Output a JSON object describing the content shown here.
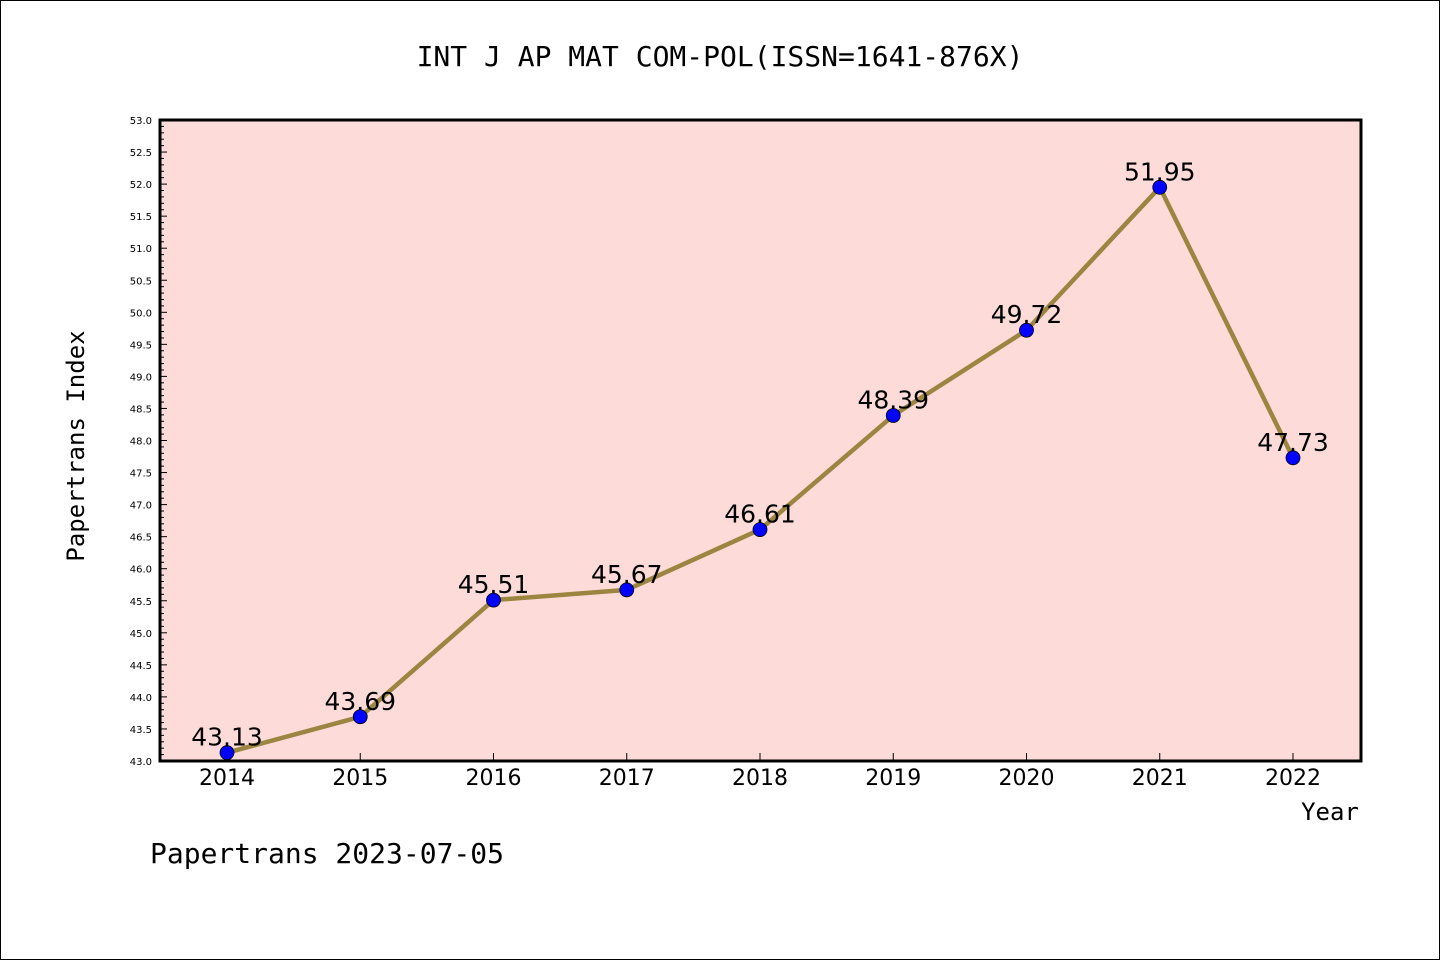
{
  "chart_data": {
    "type": "line",
    "title": "INT J AP MAT COM-POL(ISSN=1641-876X)",
    "xlabel": "Year",
    "ylabel": "Papertrans Index",
    "categories": [
      "2014",
      "2015",
      "2016",
      "2017",
      "2018",
      "2019",
      "2020",
      "2021",
      "2022"
    ],
    "values": [
      43.13,
      43.69,
      45.51,
      45.67,
      46.61,
      48.39,
      49.72,
      51.95,
      47.73
    ],
    "data_labels": [
      "43.13",
      "43.69",
      "45.51",
      "45.67",
      "46.61",
      "48.39",
      "49.72",
      "51.95",
      "47.73"
    ],
    "ylim": [
      43.0,
      53.0
    ],
    "yticks": [
      "43.0",
      "43.5",
      "44.0",
      "44.5",
      "45.0",
      "45.5",
      "46.0",
      "46.5",
      "47.0",
      "47.5",
      "48.0",
      "48.5",
      "49.0",
      "49.5",
      "50.0",
      "50.5",
      "51.0",
      "51.5",
      "52.0",
      "52.5",
      "53.0"
    ],
    "grid": false,
    "colors": {
      "plot_background": "#fddbd8",
      "line": "#9c8540",
      "marker": "#0000ff"
    }
  },
  "footer": "Papertrans 2023-07-05"
}
